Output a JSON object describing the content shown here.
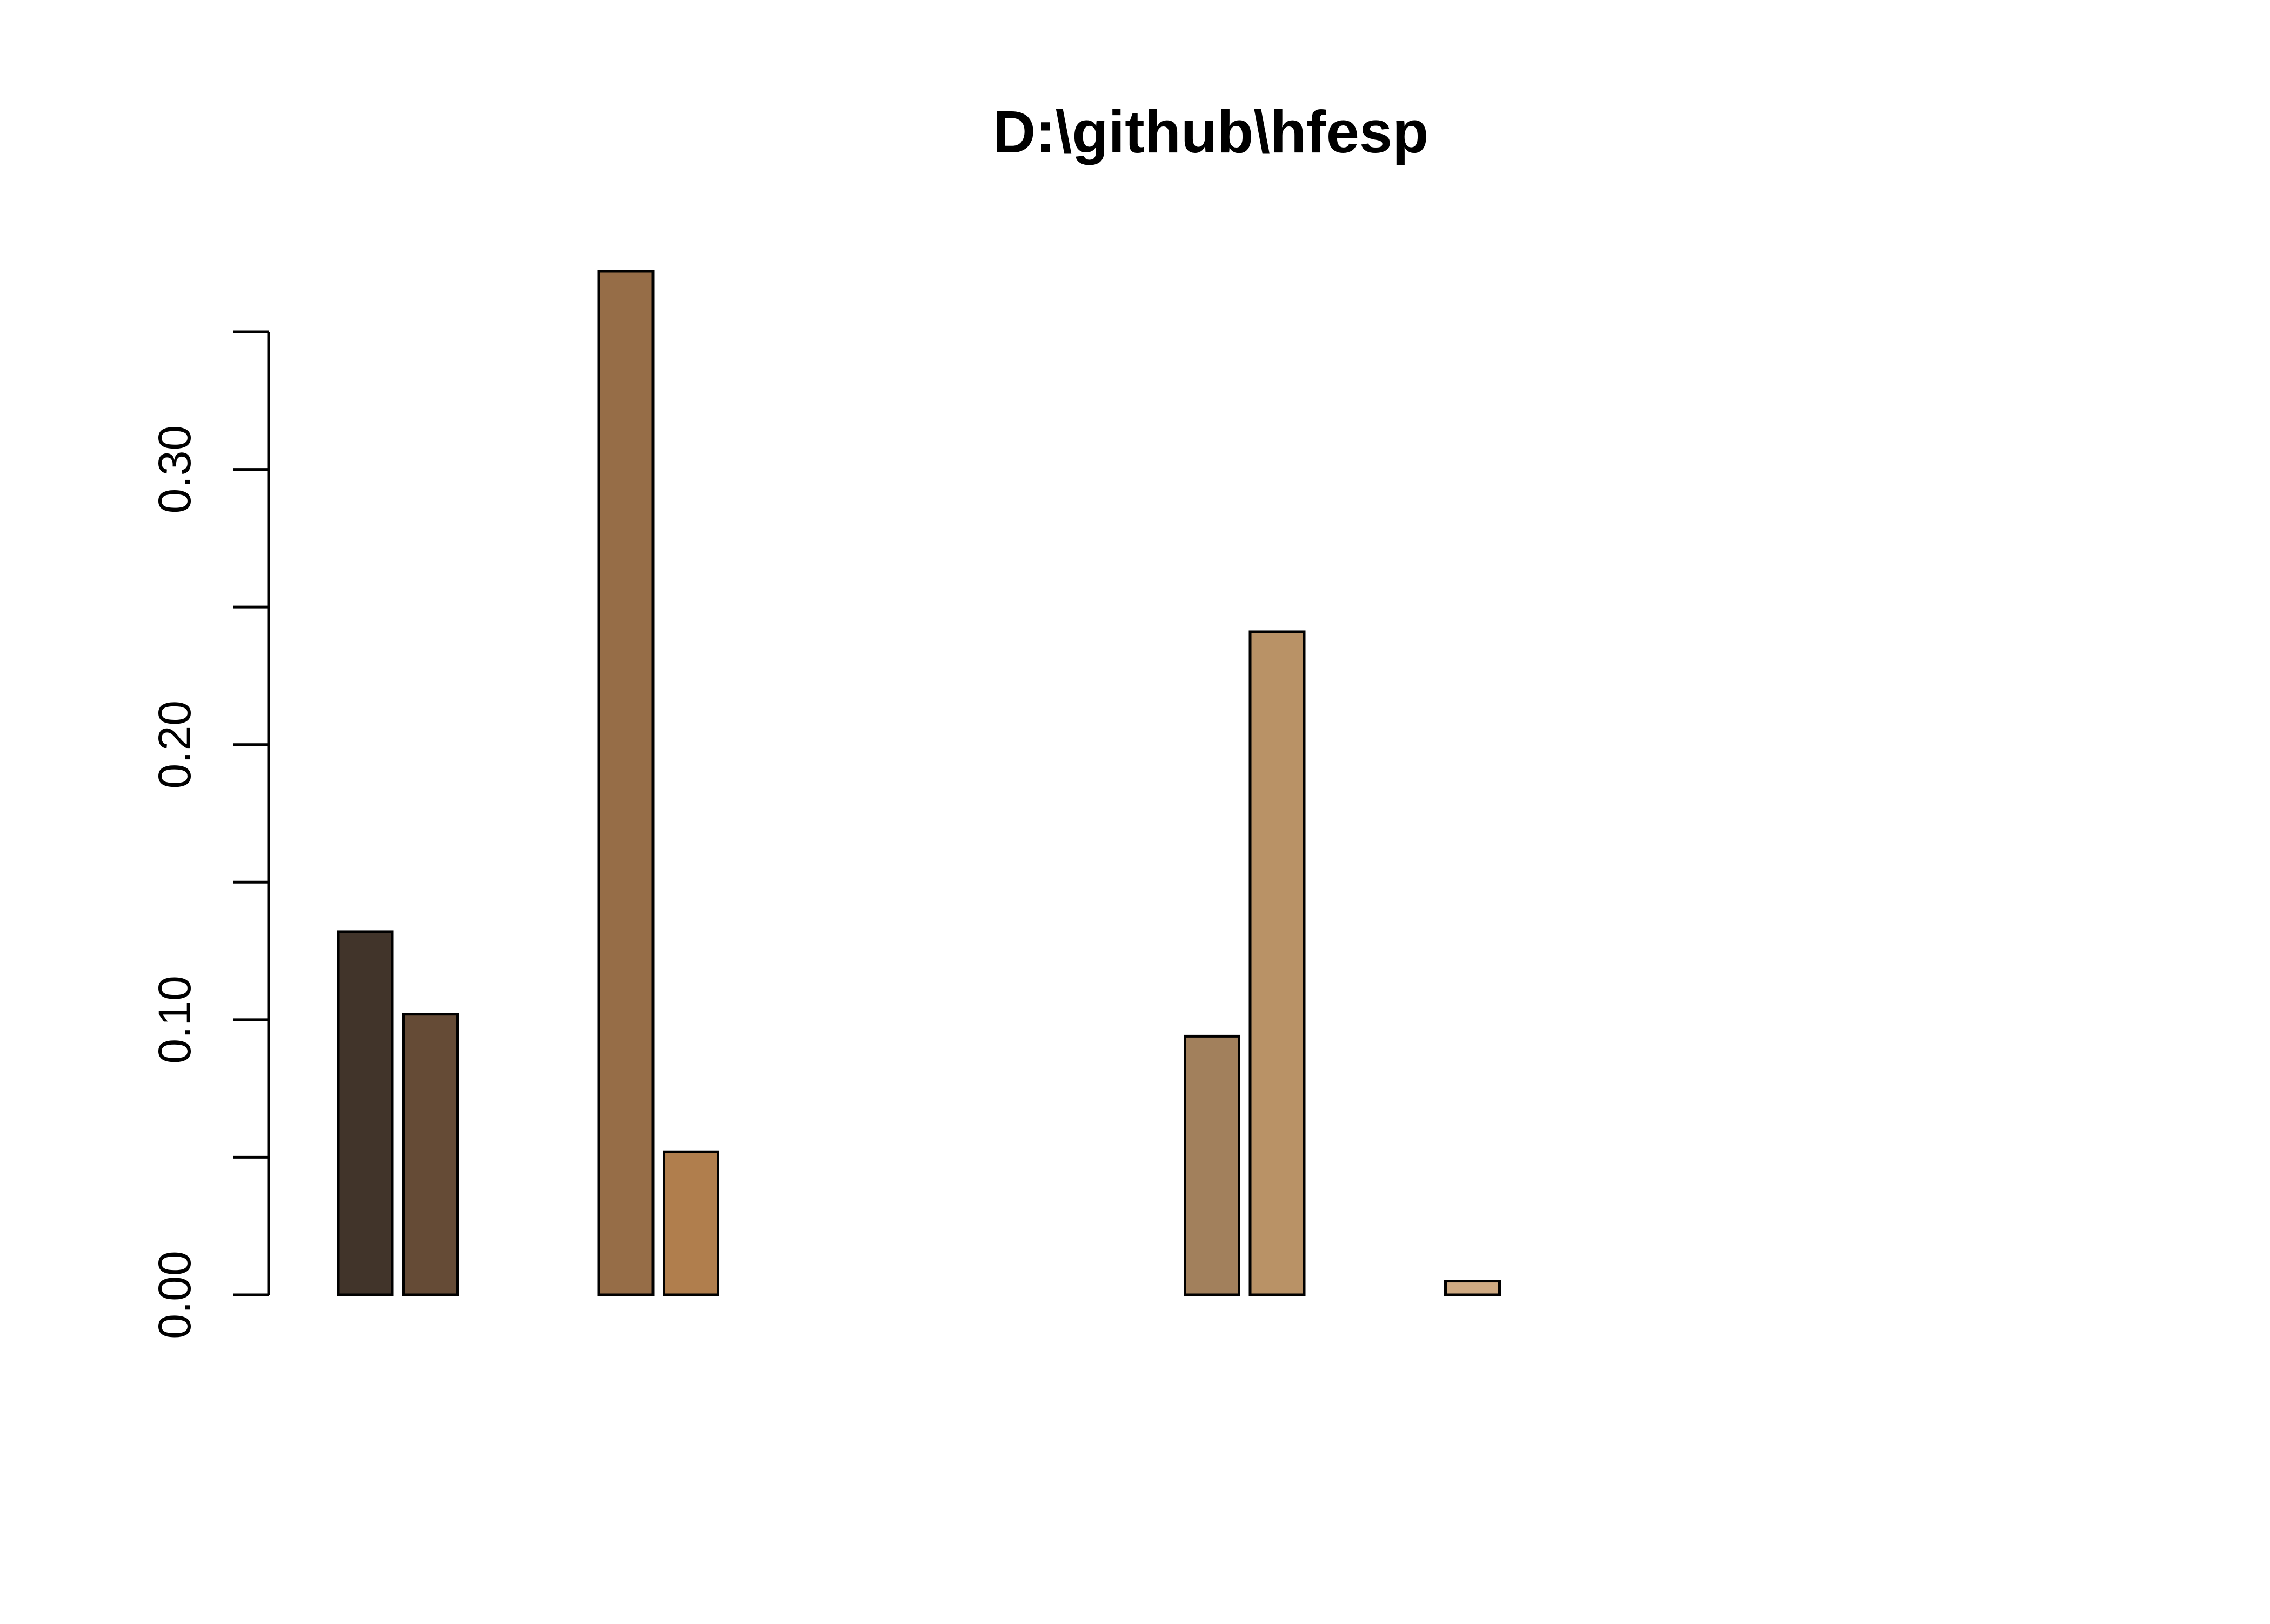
{
  "chart_data": {
    "type": "bar",
    "title": "D:\\github\\hfesp",
    "xlabel": "",
    "ylabel": "",
    "ylim": [
      0,
      0.35
    ],
    "y_ticks": [
      0.0,
      0.05,
      0.1,
      0.15,
      0.2,
      0.25,
      0.3,
      0.35
    ],
    "y_tick_labels": [
      "0.00",
      "0.10",
      "0.20",
      "0.30"
    ],
    "grid": false,
    "legend": "none",
    "values": [
      0.132,
      0.102,
      0.0,
      0.0,
      0.372,
      0.052,
      0.0,
      0.0,
      0.0,
      0.0,
      0.0,
      0.0,
      0.0,
      0.094,
      0.241,
      0.0,
      0.0,
      0.005,
      0.0,
      0.0,
      0.0,
      0.0,
      0.0,
      0.0,
      0.0,
      0.0,
      0.0
    ],
    "colors": [
      "#41342A",
      "#654B36",
      "#7A5838",
      "#7A5838",
      "#966D47",
      "#B07E4D",
      "#B07E4D",
      "#B07E4D",
      "#B07E4D",
      "#B07E4D",
      "#B07E4D",
      "#B07E4D",
      "#B07E4D",
      "#A2805C",
      "#B99266",
      "#B99266",
      "#B99266",
      "#CFAA82",
      "#CFAA82",
      "#CFAA82",
      "#CFAA82",
      "#CFAA82",
      "#CFAA82",
      "#CFAA82",
      "#CFAA82",
      "#CFAA82",
      "#CFAA82"
    ]
  }
}
